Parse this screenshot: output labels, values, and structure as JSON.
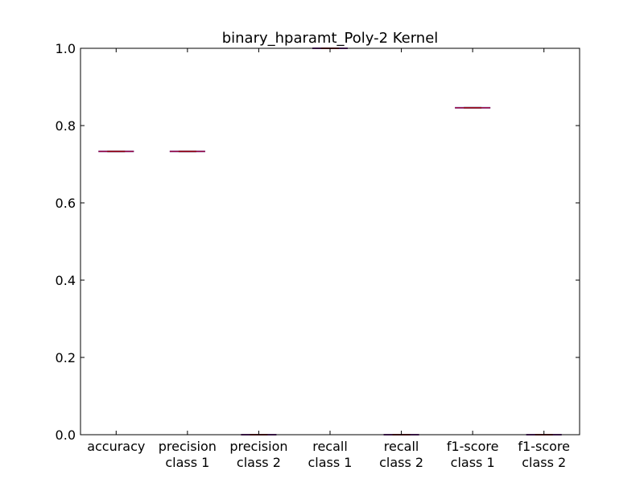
{
  "chart_data": {
    "type": "boxplot",
    "title": "binary_hparamt_Poly-2 Kernel",
    "xlabel": "",
    "ylabel": "",
    "ylim": [
      0.0,
      1.0
    ],
    "yticks": [
      "0.0",
      "0.2",
      "0.4",
      "0.6",
      "0.8",
      "1.0"
    ],
    "ytick_values": [
      0.0,
      0.2,
      0.4,
      0.6,
      0.8,
      1.0
    ],
    "grid": false,
    "categories": [
      [
        "accuracy"
      ],
      [
        "precision",
        "class 1"
      ],
      [
        "precision",
        "class 2"
      ],
      [
        "recall",
        "class 1"
      ],
      [
        "recall",
        "class 2"
      ],
      [
        "f1-score",
        "class 1"
      ],
      [
        "f1-score",
        "class 2"
      ]
    ],
    "values": [
      0.733,
      0.733,
      0.0,
      1.0,
      0.0,
      0.846,
      0.0
    ],
    "colors": {
      "box": "#1f3fbf",
      "median": "#d0102a",
      "axis": "#000000"
    }
  }
}
